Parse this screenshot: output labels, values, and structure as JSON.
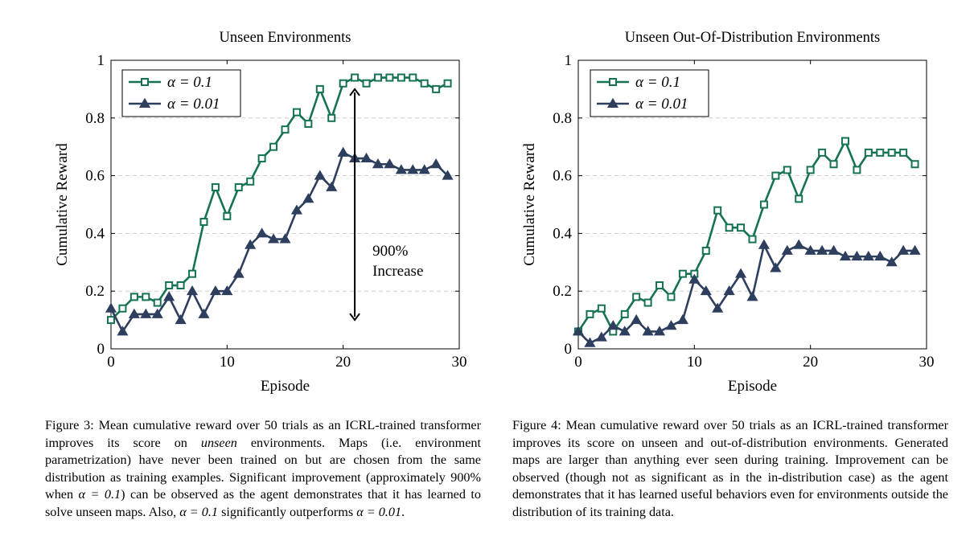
{
  "chart_data": [
    {
      "type": "line",
      "title": "Unseen Environments",
      "xlabel": "Episode",
      "ylabel": "Cumulative Reward",
      "xlim": [
        0,
        30
      ],
      "ylim": [
        0,
        1
      ],
      "xticks": [
        "0",
        "10",
        "20",
        "30"
      ],
      "yticks": [
        "0",
        "0.2",
        "0.4",
        "0.6",
        "0.8",
        "1"
      ],
      "grid": "horizontal dashed",
      "legend_position": "top-left",
      "x": [
        0,
        1,
        2,
        3,
        4,
        5,
        6,
        7,
        8,
        9,
        10,
        11,
        12,
        13,
        14,
        15,
        16,
        17,
        18,
        19,
        20,
        21,
        22,
        23,
        24,
        25,
        26,
        27,
        28,
        29
      ],
      "series": [
        {
          "name": "α = 0.1",
          "color": "#167352",
          "marker": "square",
          "values": [
            0.1,
            0.14,
            0.18,
            0.18,
            0.16,
            0.22,
            0.22,
            0.26,
            0.44,
            0.56,
            0.46,
            0.56,
            0.58,
            0.66,
            0.7,
            0.76,
            0.82,
            0.78,
            0.9,
            0.8,
            0.92,
            0.94,
            0.92,
            0.94,
            0.94,
            0.94,
            0.94,
            0.92,
            0.9,
            0.92
          ]
        },
        {
          "name": "α = 0.01",
          "color": "#2e3f5e",
          "marker": "triangle",
          "values": [
            0.14,
            0.06,
            0.12,
            0.12,
            0.12,
            0.18,
            0.1,
            0.2,
            0.12,
            0.2,
            0.2,
            0.26,
            0.36,
            0.4,
            0.38,
            0.38,
            0.48,
            0.52,
            0.6,
            0.56,
            0.68,
            0.66,
            0.66,
            0.64,
            0.64,
            0.62,
            0.62,
            0.62,
            0.64,
            0.6
          ]
        }
      ],
      "annotation": {
        "lines": [
          "900%",
          "Increase"
        ],
        "x": 21,
        "y_from": 0.1,
        "y_to": 0.9
      }
    },
    {
      "type": "line",
      "title": "Unseen Out-Of-Distribution Environments",
      "xlabel": "Episode",
      "ylabel": "Cumulative Reward",
      "xlim": [
        0,
        30
      ],
      "ylim": [
        0,
        1
      ],
      "xticks": [
        "0",
        "10",
        "20",
        "30"
      ],
      "yticks": [
        "0",
        "0.2",
        "0.4",
        "0.6",
        "0.8",
        "1"
      ],
      "grid": "horizontal dashed",
      "legend_position": "top-left",
      "x": [
        0,
        1,
        2,
        3,
        4,
        5,
        6,
        7,
        8,
        9,
        10,
        11,
        12,
        13,
        14,
        15,
        16,
        17,
        18,
        19,
        20,
        21,
        22,
        23,
        24,
        25,
        26,
        27,
        28,
        29
      ],
      "series": [
        {
          "name": "α = 0.1",
          "color": "#167352",
          "marker": "square",
          "values": [
            0.06,
            0.12,
            0.14,
            0.06,
            0.12,
            0.18,
            0.16,
            0.22,
            0.18,
            0.26,
            0.26,
            0.34,
            0.48,
            0.42,
            0.42,
            0.38,
            0.5,
            0.6,
            0.62,
            0.52,
            0.62,
            0.68,
            0.64,
            0.72,
            0.62,
            0.68,
            0.68,
            0.68,
            0.68,
            0.64
          ]
        },
        {
          "name": "α = 0.01",
          "color": "#2e3f5e",
          "marker": "triangle",
          "values": [
            0.06,
            0.02,
            0.04,
            0.08,
            0.06,
            0.1,
            0.06,
            0.06,
            0.08,
            0.1,
            0.24,
            0.2,
            0.14,
            0.2,
            0.26,
            0.18,
            0.36,
            0.28,
            0.34,
            0.36,
            0.34,
            0.34,
            0.34,
            0.32,
            0.32,
            0.32,
            0.32,
            0.3,
            0.34,
            0.34
          ]
        }
      ]
    }
  ],
  "captions": [
    {
      "segments": [
        "Figure 3: Mean cumulative reward over 50 trials as an ICRL-trained transformer improves its score on ",
        "unseen",
        " environments. Maps (i.e. environment parametrization) have never been trained on but are chosen from the same distribution as training examples. Significant improvement (approximately 900% when ",
        "α = 0.1",
        ") can be observed as the agent demonstrates that it has learned to solve unseen maps. Also, ",
        "α = 0.1",
        " significantly outperforms ",
        "α = 0.01",
        "."
      ]
    },
    {
      "text": "Figure 4: Mean cumulative reward over 50 trials as an ICRL-trained transformer improves its score on unseen and out-of-distribution environments. Generated maps are larger than anything ever seen during training. Improvement can be observed (though not as significant as in the in-distribution case) as the agent demonstrates that it has learned useful behaviors even for environments outside the distribution of its training data."
    }
  ]
}
